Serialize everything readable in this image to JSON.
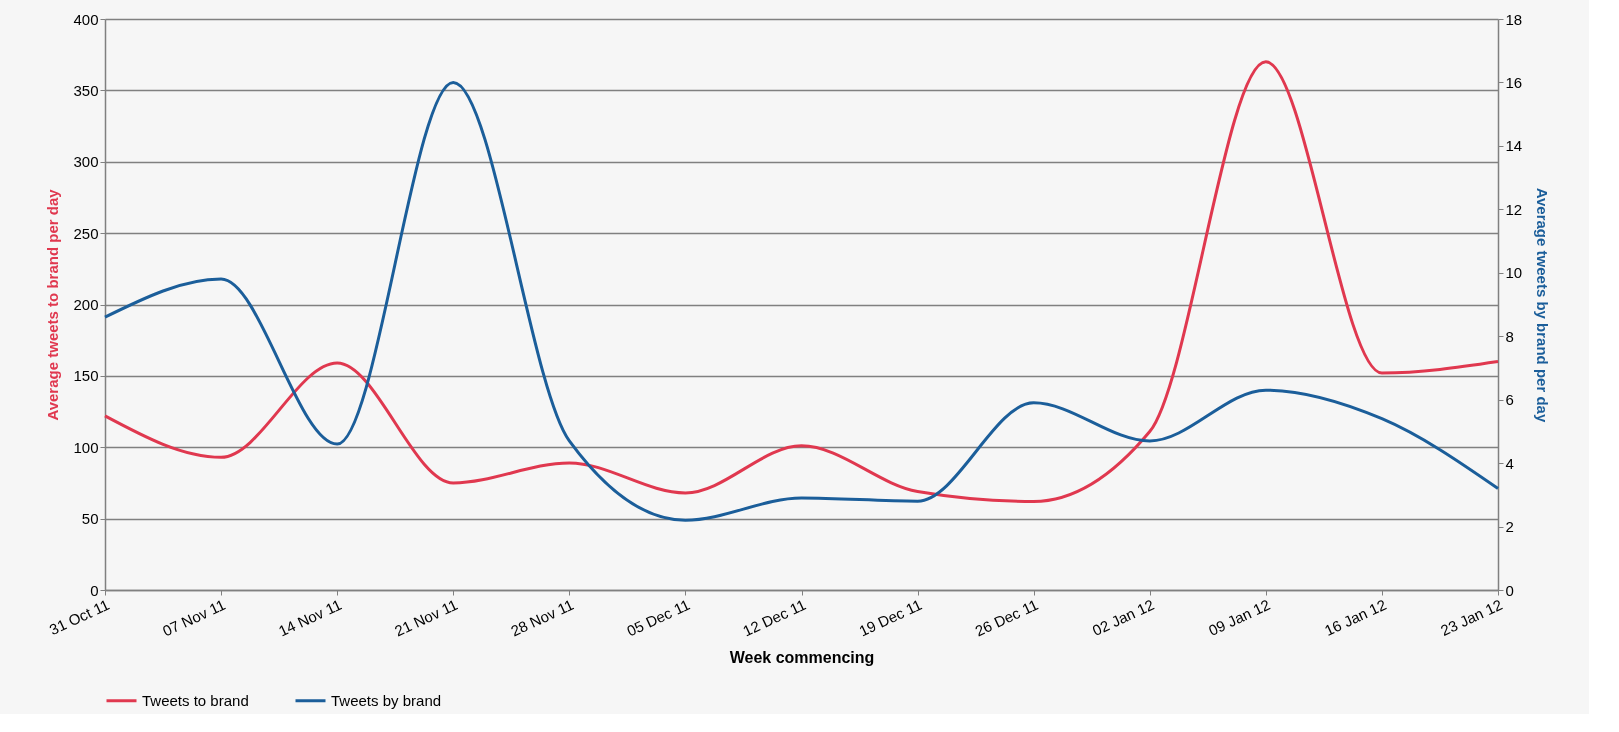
{
  "chart_data": {
    "type": "line",
    "xlabel": "Week commencing",
    "ylabel": "Average tweets to brand per day",
    "y2label": "Average tweets by brand per day",
    "categories": [
      "31 Oct 11",
      "07 Nov 11",
      "14 Nov 11",
      "21 Nov 11",
      "28 Nov 11",
      "05 Dec 11",
      "12 Dec 11",
      "19 Dec 11",
      "26 Dec 11",
      "02 Jan 12",
      "09 Jan 12",
      "16 Jan 12",
      "23 Jan 12"
    ],
    "series": [
      {
        "name": "Tweets to brand",
        "color": "#e0384f",
        "values": [
          122,
          93,
          159,
          75,
          89,
          68,
          101,
          69,
          62,
          111,
          370,
          152,
          160
        ]
      },
      {
        "name": "Tweets by brand",
        "color": "#1b5e9a",
        "axis": "y2",
        "values": [
          8.6,
          9.8,
          4.6,
          16,
          4.7,
          2.2,
          2.9,
          2.8,
          5.9,
          4.7,
          6.3,
          5.4,
          3.2
        ]
      }
    ],
    "ylim": [
      0,
      400
    ],
    "yticks": [
      0,
      50,
      100,
      150,
      200,
      250,
      300,
      350,
      400
    ],
    "y2lim": [
      0,
      18
    ],
    "y2ticks": [
      0,
      2,
      4,
      6,
      8,
      10,
      12,
      14,
      16,
      18
    ],
    "grid": "y",
    "legend": "bottom"
  }
}
